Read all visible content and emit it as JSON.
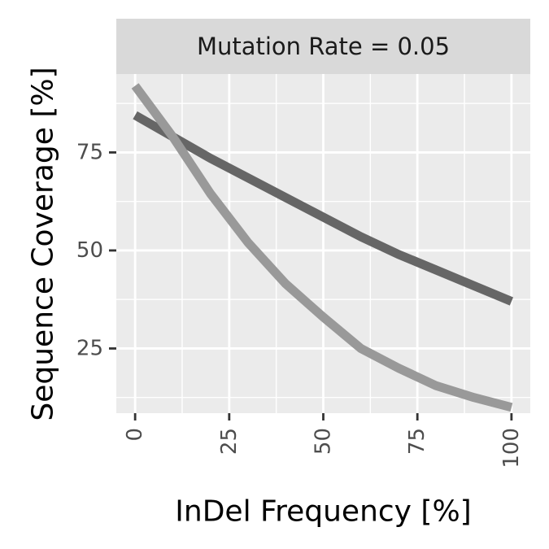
{
  "chart_data": {
    "type": "line",
    "facet_label": "Mutation Rate = 0.05",
    "xlabel": "InDel Frequency [%]",
    "ylabel": "Sequence Coverage [%]",
    "xlim": [
      -5,
      105
    ],
    "ylim": [
      8.5,
      95
    ],
    "x_ticks": [
      0,
      25,
      50,
      75,
      100
    ],
    "y_ticks": [
      25,
      50,
      75
    ],
    "x_minor": [
      12.5,
      37.5,
      62.5,
      87.5
    ],
    "y_minor": [
      12.5,
      37.5,
      62.5,
      87.5
    ],
    "grid": true,
    "series": [
      {
        "color": "#666666",
        "x": [
          0,
          10,
          20,
          30,
          40,
          50,
          60,
          70,
          80,
          90,
          100
        ],
        "y": [
          84.5,
          79,
          73.5,
          68.5,
          63.5,
          58.5,
          53.5,
          49,
          45,
          41,
          37
        ]
      },
      {
        "color": "#999999",
        "x": [
          0,
          10,
          20,
          30,
          40,
          50,
          60,
          70,
          80,
          90,
          100
        ],
        "y": [
          92,
          79,
          64.5,
          52,
          41.5,
          33,
          25,
          20,
          15.5,
          12.5,
          10
        ]
      }
    ]
  },
  "colors": {
    "panel_bg": "#ebebeb",
    "strip_bg": "#d9d9d9",
    "grid": "#ffffff",
    "tick": "#333333"
  }
}
